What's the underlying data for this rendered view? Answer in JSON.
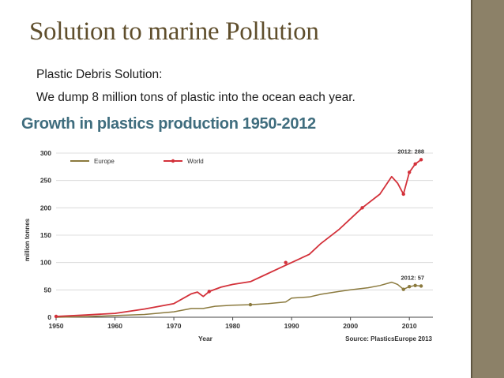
{
  "slide": {
    "title": "Solution to marine Pollution",
    "subtitle": "Plastic Debris Solution:",
    "text": "We dump 8 million tons of plastic into the ocean each year."
  },
  "colors": {
    "title": "#5f4e2c",
    "chart_heading": "#3f6d7e",
    "europe": "#8b7a3e",
    "world": "#d3313a",
    "side_band": "#8c8168"
  },
  "chart_data": {
    "type": "line",
    "title": "Growth in plastics production 1950-2012",
    "xlabel": "Year",
    "ylabel": "million tonnes",
    "xlim": [
      1950,
      2014
    ],
    "ylim": [
      0,
      300
    ],
    "xticks": [
      1950,
      1960,
      1970,
      1980,
      1990,
      2000,
      2010
    ],
    "yticks": [
      0,
      50,
      100,
      150,
      200,
      250,
      300
    ],
    "legend": "top-left",
    "source": "Source: PlasticsEurope 2013",
    "series": [
      {
        "name": "Europe",
        "color": "#8b7a3e",
        "points": [
          [
            1950,
            0
          ],
          [
            1955,
            1
          ],
          [
            1960,
            3
          ],
          [
            1965,
            5
          ],
          [
            1970,
            10
          ],
          [
            1973,
            16
          ],
          [
            1975,
            16
          ],
          [
            1977,
            20
          ],
          [
            1980,
            22
          ],
          [
            1983,
            23
          ],
          [
            1986,
            25
          ],
          [
            1989,
            28
          ],
          [
            1990,
            35
          ],
          [
            1993,
            37
          ],
          [
            1995,
            42
          ],
          [
            1998,
            47
          ],
          [
            2000,
            50
          ],
          [
            2003,
            54
          ],
          [
            2005,
            58
          ],
          [
            2007,
            64
          ],
          [
            2008,
            60
          ],
          [
            2009,
            51
          ],
          [
            2010,
            56
          ],
          [
            2011,
            58
          ],
          [
            2012,
            57
          ]
        ],
        "markers": [
          [
            1983,
            23
          ],
          [
            2009,
            51
          ],
          [
            2010,
            56
          ],
          [
            2011,
            58
          ],
          [
            2012,
            57
          ]
        ],
        "end_label": "2012: 57"
      },
      {
        "name": "World",
        "color": "#d3313a",
        "points": [
          [
            1950,
            1.5
          ],
          [
            1955,
            4
          ],
          [
            1960,
            7
          ],
          [
            1965,
            15
          ],
          [
            1970,
            25
          ],
          [
            1973,
            43
          ],
          [
            1974,
            46
          ],
          [
            1975,
            38
          ],
          [
            1976,
            47
          ],
          [
            1978,
            55
          ],
          [
            1980,
            60
          ],
          [
            1983,
            65
          ],
          [
            1985,
            75
          ],
          [
            1988,
            90
          ],
          [
            1990,
            100
          ],
          [
            1993,
            115
          ],
          [
            1995,
            135
          ],
          [
            1998,
            160
          ],
          [
            2000,
            180
          ],
          [
            2002,
            200
          ],
          [
            2005,
            225
          ],
          [
            2007,
            257
          ],
          [
            2008,
            245
          ],
          [
            2009,
            225
          ],
          [
            2010,
            265
          ],
          [
            2011,
            280
          ],
          [
            2012,
            288
          ]
        ],
        "markers": [
          [
            1950,
            1.5
          ],
          [
            1976,
            47
          ],
          [
            1989,
            100
          ],
          [
            2002,
            200
          ],
          [
            2009,
            225
          ],
          [
            2010,
            265
          ],
          [
            2011,
            280
          ],
          [
            2012,
            288
          ]
        ],
        "end_label": "2012: 288"
      }
    ]
  }
}
